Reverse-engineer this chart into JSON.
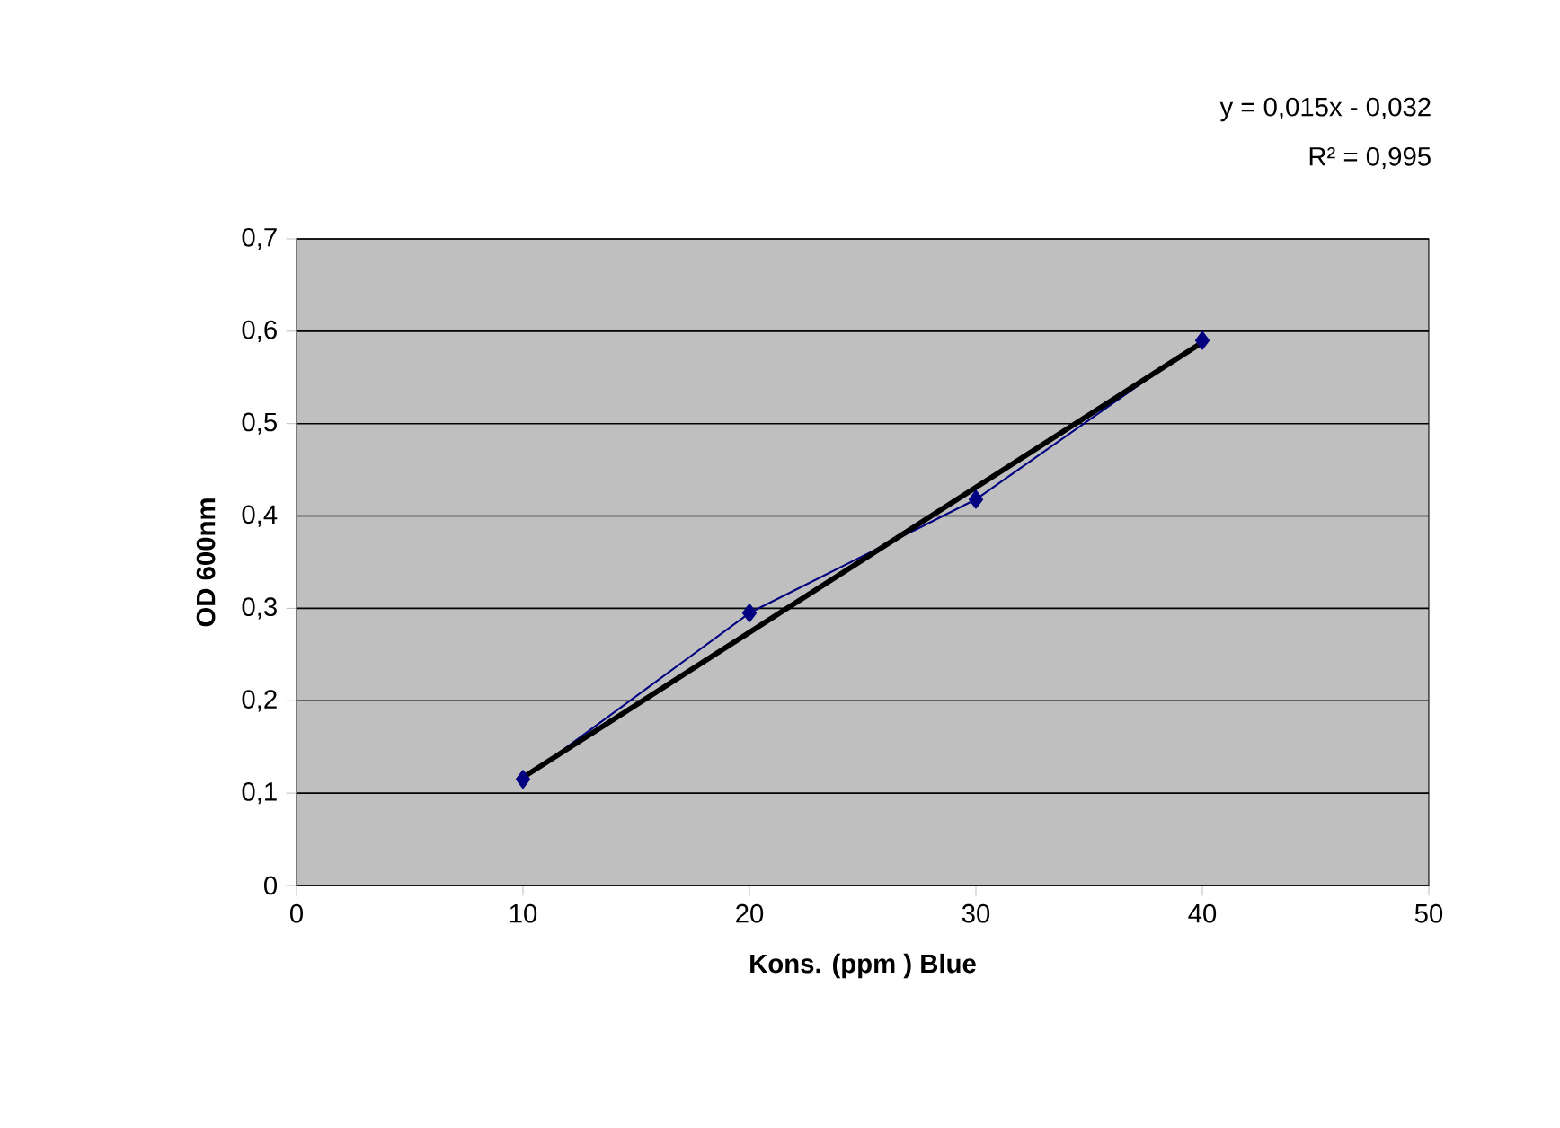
{
  "chart_data": {
    "type": "line",
    "xlabel": "Kons. (ppm ) Blue",
    "ylabel": "OD 600nm",
    "annotations": [
      "y = 0,015x - 0,032",
      "R² = 0,995"
    ],
    "xlim": [
      0,
      50
    ],
    "ylim": [
      0,
      0.7
    ],
    "xticks": [
      0,
      10,
      20,
      30,
      40,
      50
    ],
    "yticks": [
      {
        "value": 0,
        "label": "0"
      },
      {
        "value": 0.1,
        "label": "0,1"
      },
      {
        "value": 0.2,
        "label": "0,2"
      },
      {
        "value": 0.3,
        "label": "0,3"
      },
      {
        "value": 0.4,
        "label": "0,4"
      },
      {
        "value": 0.5,
        "label": "0,5"
      },
      {
        "value": 0.6,
        "label": "0,6"
      },
      {
        "value": 0.7,
        "label": "0,7"
      }
    ],
    "grid": "y",
    "series": [
      {
        "color": "#000080",
        "marker": "diamond",
        "x": [
          10,
          20,
          30,
          40
        ],
        "values": [
          0.115,
          0.295,
          0.418,
          0.59
        ]
      },
      {
        "color": "#000000",
        "marker": "none",
        "x": [
          10,
          40
        ],
        "values": [
          0.117,
          0.588
        ]
      }
    ]
  }
}
